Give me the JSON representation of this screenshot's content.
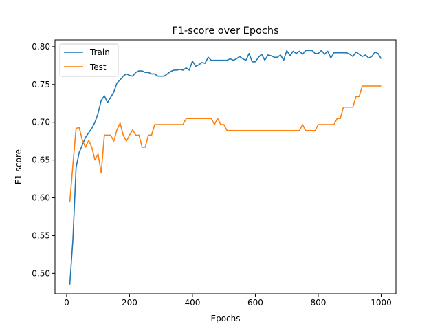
{
  "chart_data": {
    "type": "line",
    "title": "F1-score over Epochs",
    "xlabel": "Epochs",
    "ylabel": "F1-score",
    "xlim": [
      -37,
      1047
    ],
    "ylim": [
      0.473,
      0.809
    ],
    "xticks": [
      0,
      200,
      400,
      600,
      800,
      1000
    ],
    "xtick_labels": [
      "0",
      "200",
      "400",
      "600",
      "800",
      "1000"
    ],
    "yticks": [
      0.5,
      0.55,
      0.6,
      0.65,
      0.7,
      0.75,
      0.8
    ],
    "ytick_labels": [
      "0.50",
      "0.55",
      "0.60",
      "0.65",
      "0.70",
      "0.75",
      "0.80"
    ],
    "grid": false,
    "legend": "top-left",
    "x": [
      10,
      20,
      30,
      40,
      50,
      60,
      70,
      80,
      90,
      100,
      110,
      120,
      130,
      140,
      150,
      160,
      170,
      180,
      190,
      200,
      210,
      220,
      230,
      240,
      250,
      260,
      270,
      280,
      290,
      300,
      310,
      320,
      330,
      340,
      350,
      360,
      370,
      380,
      390,
      400,
      410,
      420,
      430,
      440,
      450,
      460,
      470,
      480,
      490,
      500,
      510,
      520,
      530,
      540,
      550,
      560,
      570,
      580,
      590,
      600,
      610,
      620,
      630,
      640,
      650,
      660,
      670,
      680,
      690,
      700,
      710,
      720,
      730,
      740,
      750,
      760,
      770,
      780,
      790,
      800,
      810,
      820,
      830,
      840,
      850,
      860,
      870,
      880,
      890,
      900,
      910,
      920,
      930,
      940,
      950,
      960,
      970,
      980,
      990,
      1000
    ],
    "series": [
      {
        "name": "Train",
        "color": "#1f77b4",
        "values": [
          0.485,
          0.545,
          0.64,
          0.66,
          0.67,
          0.68,
          0.686,
          0.692,
          0.7,
          0.712,
          0.729,
          0.735,
          0.726,
          0.733,
          0.74,
          0.752,
          0.756,
          0.761,
          0.764,
          0.762,
          0.761,
          0.766,
          0.768,
          0.768,
          0.766,
          0.766,
          0.764,
          0.764,
          0.761,
          0.761,
          0.761,
          0.764,
          0.767,
          0.769,
          0.769,
          0.77,
          0.769,
          0.772,
          0.769,
          0.781,
          0.774,
          0.776,
          0.779,
          0.778,
          0.786,
          0.782,
          0.782,
          0.782,
          0.782,
          0.782,
          0.782,
          0.784,
          0.782,
          0.784,
          0.787,
          0.784,
          0.782,
          0.791,
          0.78,
          0.78,
          0.786,
          0.79,
          0.782,
          0.789,
          0.788,
          0.786,
          0.786,
          0.789,
          0.782,
          0.795,
          0.788,
          0.794,
          0.791,
          0.794,
          0.79,
          0.795,
          0.795,
          0.795,
          0.791,
          0.791,
          0.795,
          0.79,
          0.794,
          0.785,
          0.792,
          0.792,
          0.792,
          0.792,
          0.792,
          0.79,
          0.787,
          0.793,
          0.79,
          0.787,
          0.789,
          0.785,
          0.787,
          0.793,
          0.791,
          0.784
        ]
      },
      {
        "name": "Test",
        "color": "#ff7f0e",
        "values": [
          0.594,
          0.644,
          0.692,
          0.693,
          0.676,
          0.667,
          0.676,
          0.667,
          0.65,
          0.658,
          0.633,
          0.683,
          0.683,
          0.683,
          0.675,
          0.69,
          0.699,
          0.683,
          0.675,
          0.683,
          0.69,
          0.683,
          0.683,
          0.667,
          0.667,
          0.683,
          0.683,
          0.697,
          0.697,
          0.697,
          0.697,
          0.697,
          0.697,
          0.697,
          0.697,
          0.697,
          0.697,
          0.705,
          0.705,
          0.705,
          0.705,
          0.705,
          0.705,
          0.705,
          0.705,
          0.705,
          0.697,
          0.705,
          0.697,
          0.697,
          0.689,
          0.689,
          0.689,
          0.689,
          0.689,
          0.689,
          0.689,
          0.689,
          0.689,
          0.689,
          0.689,
          0.689,
          0.689,
          0.689,
          0.689,
          0.689,
          0.689,
          0.689,
          0.689,
          0.689,
          0.689,
          0.689,
          0.689,
          0.689,
          0.697,
          0.689,
          0.689,
          0.689,
          0.689,
          0.697,
          0.697,
          0.697,
          0.697,
          0.697,
          0.697,
          0.705,
          0.705,
          0.72,
          0.72,
          0.72,
          0.72,
          0.734,
          0.734,
          0.748,
          0.748,
          0.748,
          0.748,
          0.748,
          0.748,
          0.748
        ]
      }
    ]
  }
}
